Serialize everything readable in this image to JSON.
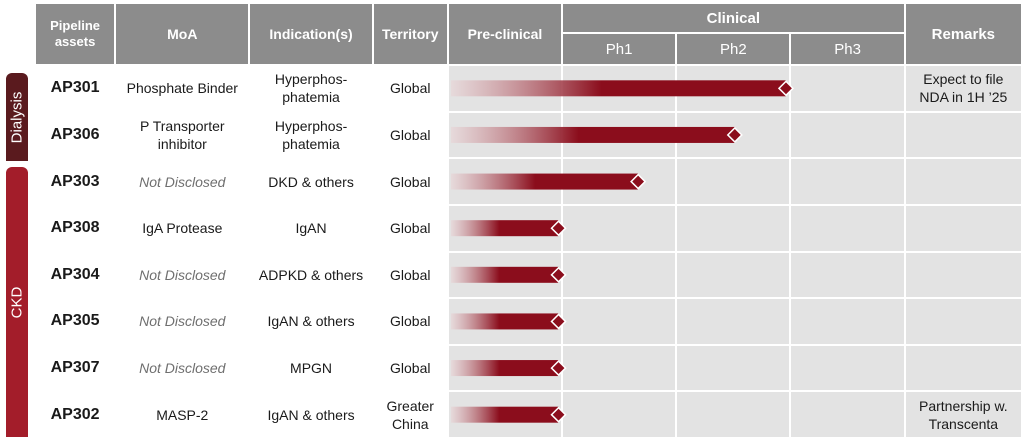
{
  "header": {
    "assets": "Pipeline assets",
    "moa": "MoA",
    "indication": "Indication(s)",
    "territory": "Territory",
    "preclinical": "Pre-clinical",
    "clinical": "Clinical",
    "ph1": "Ph1",
    "ph2": "Ph2",
    "ph3": "Ph3",
    "remarks": "Remarks"
  },
  "groups": [
    {
      "label": "Dialysis"
    },
    {
      "label": "CKD"
    }
  ],
  "rows": [
    {
      "asset": "AP301",
      "moa": "Phosphate Binder",
      "indication": "Hyperphos-phatemia",
      "territory": "Global",
      "remarks": "Expect to file NDA in 1H ’25"
    },
    {
      "asset": "AP306",
      "moa": "P Transporter inhibitor",
      "indication": "Hyperphos-phatemia",
      "territory": "Global",
      "remarks": ""
    },
    {
      "asset": "AP303",
      "moa": "Not Disclosed",
      "indication": "DKD & others",
      "territory": "Global",
      "remarks": ""
    },
    {
      "asset": "AP308",
      "moa": "IgA Protease",
      "indication": "IgAN",
      "territory": "Global",
      "remarks": ""
    },
    {
      "asset": "AP304",
      "moa": "Not Disclosed",
      "indication": "ADPKD & others",
      "territory": "Global",
      "remarks": ""
    },
    {
      "asset": "AP305",
      "moa": "Not Disclosed",
      "indication": "IgAN & others",
      "territory": "Global",
      "remarks": ""
    },
    {
      "asset": "AP307",
      "moa": "Not Disclosed",
      "indication": "MPGN",
      "territory": "Global",
      "remarks": ""
    },
    {
      "asset": "AP302",
      "moa": "MASP-2",
      "indication": "IgAN & others",
      "territory": "Greater China",
      "remarks": "Partnership w. Transcenta"
    }
  ],
  "chart_data": {
    "type": "bar",
    "orientation": "horizontal",
    "stages": [
      "Pre-clinical",
      "Ph1",
      "Ph2",
      "Ph3"
    ],
    "categories": [
      "AP301",
      "AP306",
      "AP303",
      "AP308",
      "AP304",
      "AP305",
      "AP307",
      "AP302"
    ],
    "values": [
      3.0,
      2.55,
      1.7,
      1.0,
      1.0,
      1.0,
      1.0,
      1.0
    ],
    "xlim": [
      0,
      4
    ],
    "bar_color": "#8b0d1c",
    "grid": true
  },
  "colors": {
    "header": "#8c8c8c",
    "dialysis": "#5a1a1e",
    "ckd": "#a31d2a",
    "phase_bg": "#e3e3e3"
  }
}
